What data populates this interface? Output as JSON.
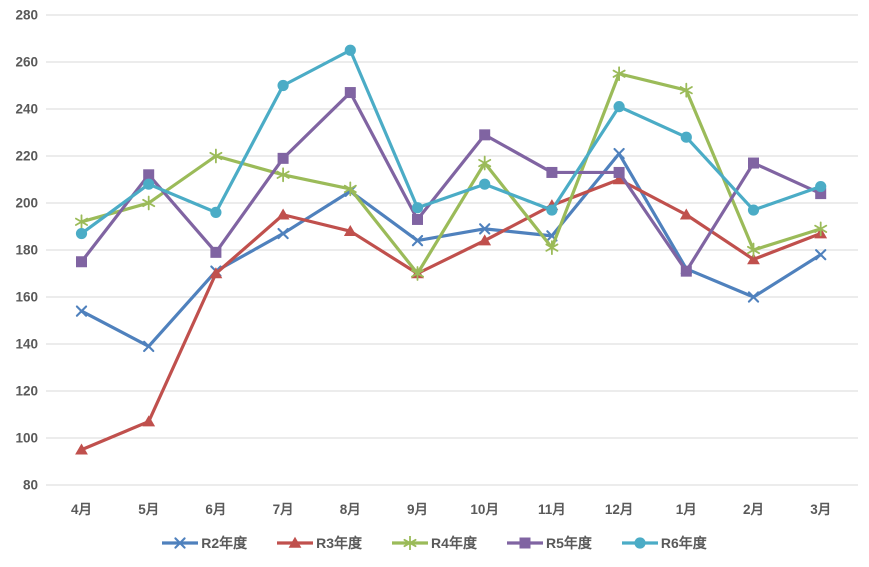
{
  "chart_data": {
    "type": "line",
    "title": "",
    "categories": [
      "4月",
      "5月",
      "6月",
      "7月",
      "8月",
      "9月",
      "10月",
      "11月",
      "12月",
      "1月",
      "2月",
      "3月"
    ],
    "series": [
      {
        "name": "R2年度",
        "color": "#4F81BD",
        "marker": "x",
        "values": [
          154,
          139,
          171,
          187,
          205,
          184,
          189,
          186,
          221,
          172,
          160,
          178
        ]
      },
      {
        "name": "R3年度",
        "color": "#C0504D",
        "marker": "triangle",
        "values": [
          95,
          107,
          170,
          195,
          188,
          170,
          184,
          199,
          210,
          195,
          176,
          187
        ]
      },
      {
        "name": "R4年度",
        "color": "#9BBB59",
        "marker": "asterisk",
        "values": [
          192,
          200,
          220,
          212,
          206,
          170,
          217,
          181,
          255,
          248,
          180,
          189
        ]
      },
      {
        "name": "R5年度",
        "color": "#8064A2",
        "marker": "square",
        "values": [
          175,
          212,
          179,
          219,
          247,
          193,
          229,
          213,
          213,
          171,
          217,
          204
        ]
      },
      {
        "name": "R6年度",
        "color": "#4BACC6",
        "marker": "circle",
        "values": [
          187,
          208,
          196,
          250,
          265,
          198,
          208,
          197,
          241,
          228,
          197,
          207
        ]
      }
    ],
    "xlabel": "",
    "ylabel": "",
    "ylim": [
      80,
      280
    ],
    "ytick_step": 20,
    "y_ticks": [
      280,
      260,
      240,
      220,
      200,
      180,
      160,
      140,
      120,
      100,
      80
    ],
    "grid": "horizontal",
    "legend_position": "bottom",
    "axis_text_color": "#595959",
    "grid_color": "#D9D9D9",
    "background_color": "#FFFFFF"
  }
}
